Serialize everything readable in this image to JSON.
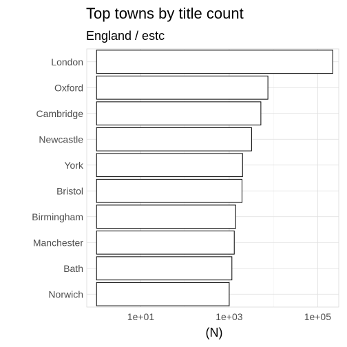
{
  "chart_data": {
    "type": "bar",
    "orientation": "horizontal",
    "title": "Top towns by title count",
    "subtitle": "England / estc",
    "xlabel": "(N)",
    "ylabel": "",
    "x_scale": "log10",
    "xlim": [
      0.6,
      300000
    ],
    "x_ticks": [
      10,
      1000,
      100000
    ],
    "x_tick_labels": [
      "1e+01",
      "1e+03",
      "1e+05"
    ],
    "grid": true,
    "categories": [
      "London",
      "Oxford",
      "Cambridge",
      "Newcastle",
      "York",
      "Bristol",
      "Birmingham",
      "Manchester",
      "Bath",
      "Norwich"
    ],
    "values": [
      220000,
      7500,
      5200,
      3200,
      2000,
      1950,
      1400,
      1300,
      1150,
      1000
    ],
    "baseline": 1,
    "colors": {
      "bar_fill": "#ffffff",
      "bar_stroke": "#000000"
    }
  }
}
